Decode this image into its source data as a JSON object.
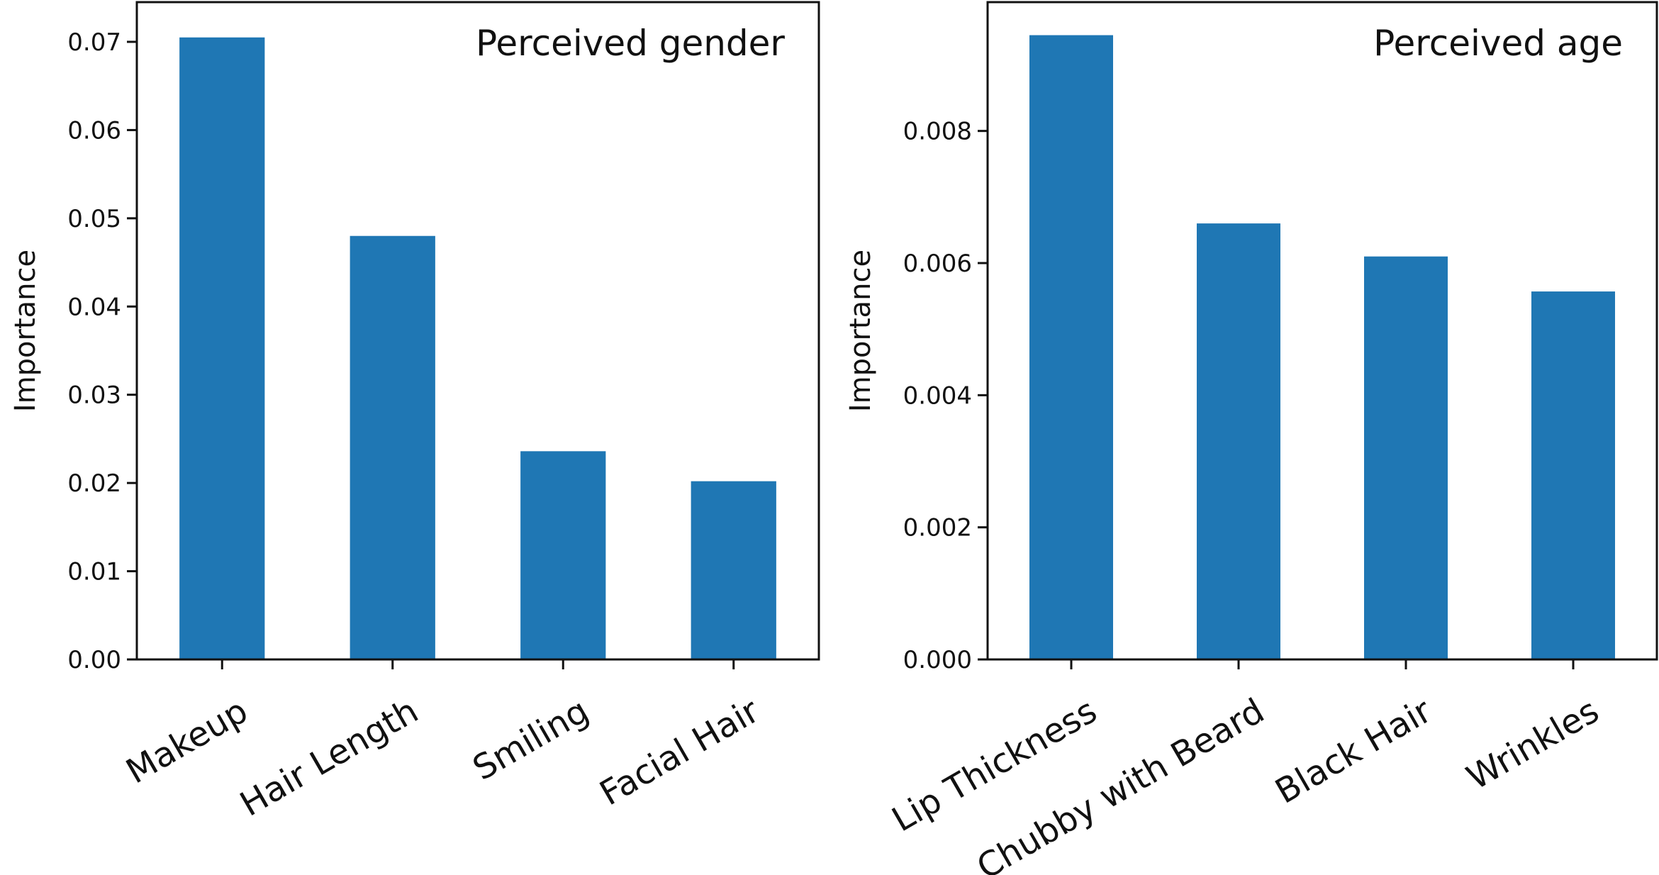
{
  "colors": {
    "bar": "#1f77b4",
    "axis": "#111111",
    "background": "#ffffff"
  },
  "chart_data": [
    {
      "type": "bar",
      "title": "Perceived gender",
      "xlabel": "",
      "ylabel": "Importance",
      "categories": [
        "Makeup",
        "Hair Length",
        "Smiling",
        "Facial Hair"
      ],
      "values": [
        0.0705,
        0.048,
        0.0236,
        0.0202
      ],
      "ylim": [
        0,
        0.0745
      ],
      "yticks": [
        0,
        0.01,
        0.02,
        0.03,
        0.04,
        0.05,
        0.06,
        0.07
      ],
      "ytick_labels": [
        "0.00",
        "0.01",
        "0.02",
        "0.03",
        "0.04",
        "0.05",
        "0.06",
        "0.07"
      ],
      "legend": "none",
      "grid": false
    },
    {
      "type": "bar",
      "title": "Perceived age",
      "xlabel": "",
      "ylabel": "Importance",
      "categories": [
        "Lip Thickness",
        "Chubby with Beard",
        "Black Hair",
        "Wrinkles"
      ],
      "values": [
        0.00945,
        0.0066,
        0.0061,
        0.00557
      ],
      "ylim": [
        0,
        0.00995
      ],
      "yticks": [
        0,
        0.002,
        0.004,
        0.006,
        0.008
      ],
      "ytick_labels": [
        "0.000",
        "0.002",
        "0.004",
        "0.006",
        "0.008"
      ],
      "legend": "none",
      "grid": false
    }
  ]
}
